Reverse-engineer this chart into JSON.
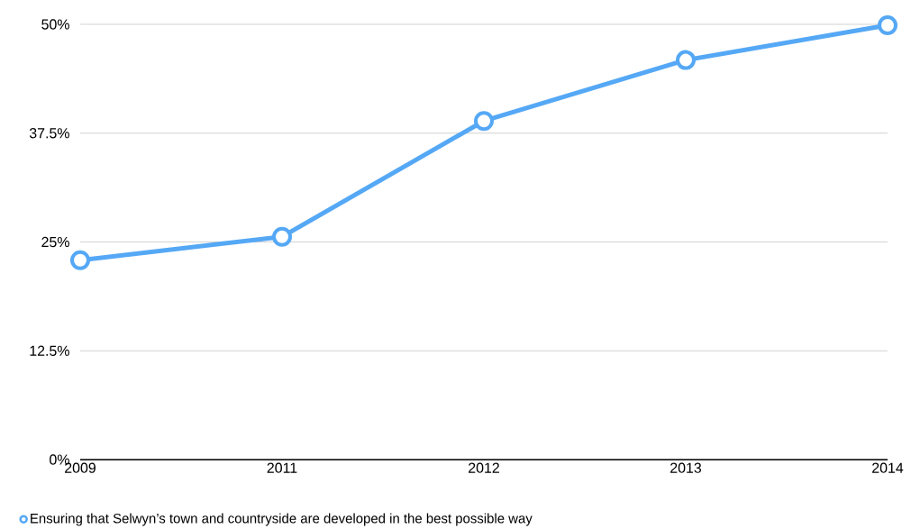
{
  "chart_data": {
    "type": "line",
    "categories": [
      "2009",
      "2011",
      "2012",
      "2013",
      "2014"
    ],
    "series": [
      {
        "name": "Ensuring that Selwyn’s town and countryside are developed in the best possible way",
        "color": "#55a8f5",
        "values": [
          22.9,
          25.6,
          38.9,
          45.9,
          49.9
        ]
      }
    ],
    "ylim": [
      0,
      50
    ],
    "yticks": [
      {
        "value": 0,
        "label": "0%"
      },
      {
        "value": 12.5,
        "label": "12.5%"
      },
      {
        "value": 25,
        "label": "25%"
      },
      {
        "value": 37.5,
        "label": "37.5%"
      },
      {
        "value": 50,
        "label": "50%"
      }
    ],
    "grid": "y",
    "legend": "bottom left",
    "marker": "circle"
  }
}
